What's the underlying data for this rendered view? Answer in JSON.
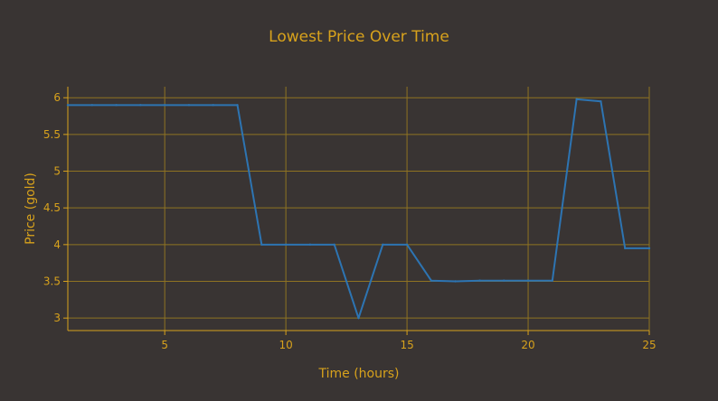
{
  "chart_data": {
    "type": "line",
    "title": "Lowest Price Over Time",
    "xlabel": "Time (hours)",
    "ylabel": "Price (gold)",
    "xlim": [
      1,
      25
    ],
    "ylim": [
      2.83,
      6.15
    ],
    "x_ticks": [
      5,
      10,
      15,
      20,
      25
    ],
    "y_ticks": [
      3,
      3.5,
      4,
      4.5,
      5,
      5.5,
      6
    ],
    "x_tick_labels": [
      "5",
      "10",
      "15",
      "20",
      "25"
    ],
    "y_tick_labels": [
      "3",
      "3.5",
      "4",
      "4.5",
      "5",
      "5.5",
      "6"
    ],
    "grid": true,
    "legend": "none",
    "series": [
      {
        "x": [
          1,
          2,
          3,
          4,
          5,
          6,
          7,
          8,
          9,
          10,
          11,
          12,
          13,
          14,
          15,
          16,
          17,
          18,
          19,
          20,
          21,
          22,
          23,
          24,
          25
        ],
        "y": [
          5.9,
          5.9,
          5.9,
          5.9,
          5.9,
          5.9,
          5.9,
          5.9,
          4.0,
          4.0,
          4.0,
          4.0,
          3.0,
          4.0,
          4.0,
          3.51,
          3.5,
          3.51,
          3.51,
          3.51,
          3.51,
          5.98,
          5.95,
          3.95,
          3.95
        ]
      }
    ],
    "colors": {
      "background": "#393433",
      "text": "#d8a21c",
      "grid": "#8f7322",
      "axis": "#d8a21c",
      "line": "#2d74b2"
    }
  }
}
